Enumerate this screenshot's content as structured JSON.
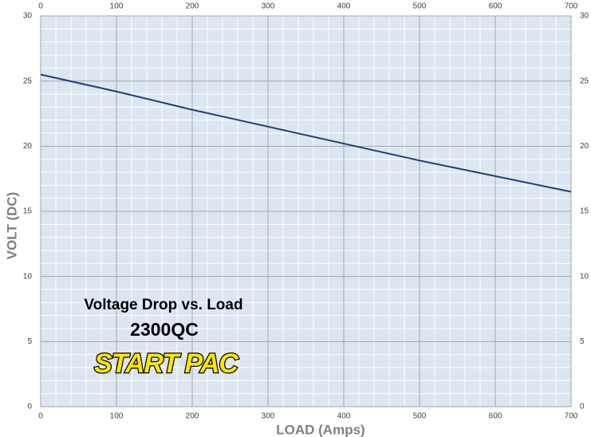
{
  "chart_data": {
    "type": "line",
    "x_label": "LOAD (Amps)",
    "y_label": "VOLT (DC)",
    "annotations": [
      "Voltage Drop vs. Load",
      "2300QC",
      "START PAC"
    ],
    "x": [
      0,
      100,
      200,
      300,
      400,
      500,
      600,
      700
    ],
    "series": [
      {
        "name": "2300QC",
        "color": "#1f3e7a",
        "values": [
          25.5,
          24.2,
          22.8,
          21.5,
          20.2,
          18.9,
          17.7,
          16.5
        ]
      }
    ],
    "xlim": [
      0,
      700
    ],
    "xticks": [
      0,
      100,
      200,
      300,
      400,
      500,
      600,
      700
    ],
    "ylim": [
      0,
      30
    ],
    "yticks": [
      0,
      5,
      10,
      15,
      20,
      25,
      30
    ],
    "grid": true
  }
}
